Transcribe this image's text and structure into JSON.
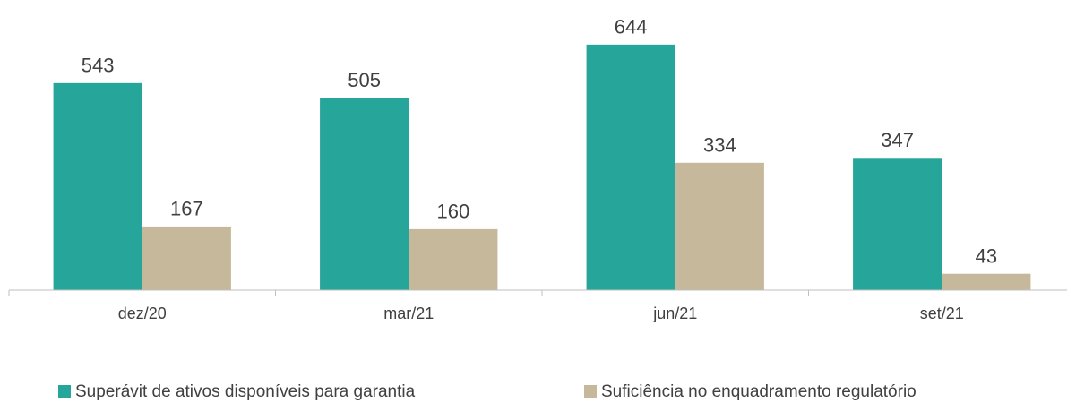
{
  "chart_data": {
    "type": "bar",
    "categories": [
      "dez/20",
      "mar/21",
      "jun/21",
      "set/21"
    ],
    "series": [
      {
        "name": "Superávit de ativos disponíveis para garantia",
        "color": "#26a59b",
        "values": [
          543,
          505,
          644,
          347
        ]
      },
      {
        "name": "Suficiência no enquadramento regulatório",
        "color": "#c6b99b",
        "values": [
          167,
          160,
          334,
          43
        ]
      }
    ],
    "ylim": [
      0,
      700
    ],
    "legend": "bottom"
  }
}
